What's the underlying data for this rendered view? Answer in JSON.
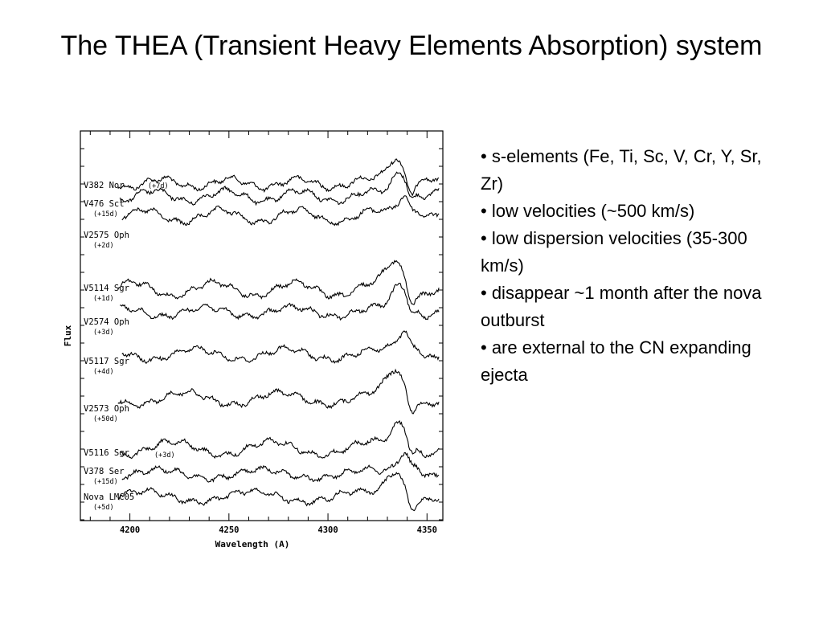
{
  "slide": {
    "title": "The THEA (Transient Heavy Elements Absorption) system",
    "bullets": [
      "• s-elements (Fe, Ti, Sc, V, Cr, Y, Sr, Zr)",
      "• low velocities (~500 km/s)",
      "• low dispersion velocities (35-300 km/s)",
      "• disappear ~1 month  after the nova outburst",
      "• are external to the CN expanding ejecta"
    ]
  },
  "chart_data": {
    "type": "line",
    "title": "",
    "xlabel": "Wavelength (A)",
    "ylabel": "Flux",
    "xlim": [
      4175,
      4358
    ],
    "x_ticks": [
      4200,
      4250,
      4300,
      4350
    ],
    "x_tick_labels": [
      "4200",
      "4250",
      "4300",
      "4350"
    ],
    "grid": false,
    "legend": "none",
    "series": [
      {
        "name": "V382 Nor",
        "epoch": "(+7d)"
      },
      {
        "name": "V476 Sct",
        "epoch": "(+15d)"
      },
      {
        "name": "V2575 Oph",
        "epoch": "(+2d)"
      },
      {
        "name": "V5114 Sgr",
        "epoch": "(+1d)"
      },
      {
        "name": "V2574 Oph",
        "epoch": "(+3d)"
      },
      {
        "name": "V5117 Sgr",
        "epoch": "(+4d)"
      },
      {
        "name": "V2573 Oph",
        "epoch": "(+50d)"
      },
      {
        "name": "V5116 Sgr",
        "epoch": "(+3d)"
      },
      {
        "name": "V378 Ser",
        "epoch": "(+15d)"
      },
      {
        "name": "Nova LMC05",
        "epoch": "(+5d)"
      }
    ]
  }
}
